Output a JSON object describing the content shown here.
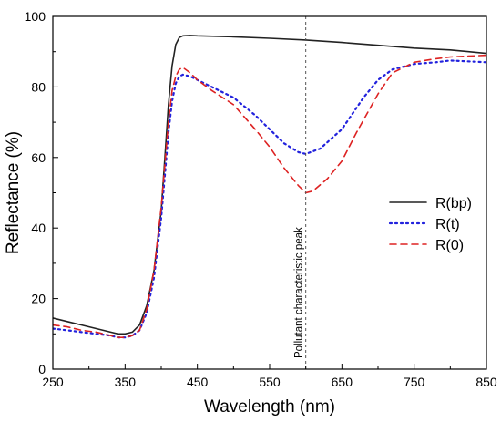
{
  "chart_data": {
    "type": "line",
    "xlabel": "Wavelength (nm)",
    "ylabel": "Reflectance (%)",
    "xlim": [
      250,
      850
    ],
    "ylim": [
      0,
      100
    ],
    "xticks": [
      "250",
      "350",
      "450",
      "550",
      "650",
      "750",
      "850"
    ],
    "yticks": [
      "0",
      "20",
      "40",
      "60",
      "80",
      "100"
    ],
    "grid": false,
    "legend_position": "right",
    "annotation": {
      "text": "Pollutant characteristic peak",
      "x": 600
    },
    "series": [
      {
        "name": "R(bp)",
        "color": "#222222",
        "style": "solid",
        "x": [
          250,
          270,
          290,
          310,
          330,
          340,
          350,
          360,
          370,
          380,
          390,
          400,
          405,
          410,
          415,
          420,
          425,
          430,
          440,
          450,
          500,
          550,
          600,
          650,
          700,
          750,
          800,
          850
        ],
        "y": [
          14.5,
          13.5,
          12.5,
          11.5,
          10.5,
          10.0,
          10.0,
          10.5,
          12.5,
          18,
          28,
          45,
          60,
          75,
          86,
          92,
          94,
          94.5,
          94.6,
          94.5,
          94.2,
          93.8,
          93.3,
          92.6,
          91.8,
          91.0,
          90.5,
          89.5
        ]
      },
      {
        "name": "R(t)",
        "color": "#2222dd",
        "style": "dotted",
        "x": [
          250,
          270,
          290,
          310,
          330,
          340,
          350,
          360,
          370,
          380,
          390,
          400,
          405,
          410,
          415,
          420,
          425,
          430,
          440,
          450,
          470,
          500,
          530,
          550,
          570,
          590,
          600,
          620,
          650,
          680,
          700,
          720,
          750,
          780,
          800,
          850
        ],
        "y": [
          11.5,
          11,
          10.5,
          10,
          9.5,
          9.0,
          9.0,
          9.5,
          11,
          16,
          26,
          43,
          55,
          67,
          76,
          81,
          83,
          83.5,
          83,
          82,
          80,
          77,
          72,
          68,
          64,
          61.5,
          61,
          62.5,
          68,
          77,
          82,
          85,
          86.5,
          87,
          87.5,
          87
        ]
      },
      {
        "name": "R(0)",
        "color": "#dd2222",
        "style": "dashed",
        "x": [
          250,
          270,
          290,
          310,
          330,
          340,
          350,
          360,
          370,
          380,
          390,
          400,
          405,
          410,
          415,
          420,
          425,
          430,
          440,
          450,
          470,
          500,
          530,
          550,
          570,
          590,
          600,
          610,
          630,
          650,
          670,
          700,
          720,
          750,
          780,
          800,
          850
        ],
        "y": [
          12.5,
          12,
          11,
          10.5,
          9.5,
          9.0,
          9.0,
          9.5,
          11,
          17,
          28,
          46,
          58,
          70,
          79,
          83,
          85,
          85.5,
          84,
          82,
          79,
          75,
          68,
          63,
          57,
          52,
          50,
          50.5,
          54,
          59,
          67,
          78,
          84,
          87,
          88,
          88.5,
          89
        ]
      }
    ]
  }
}
